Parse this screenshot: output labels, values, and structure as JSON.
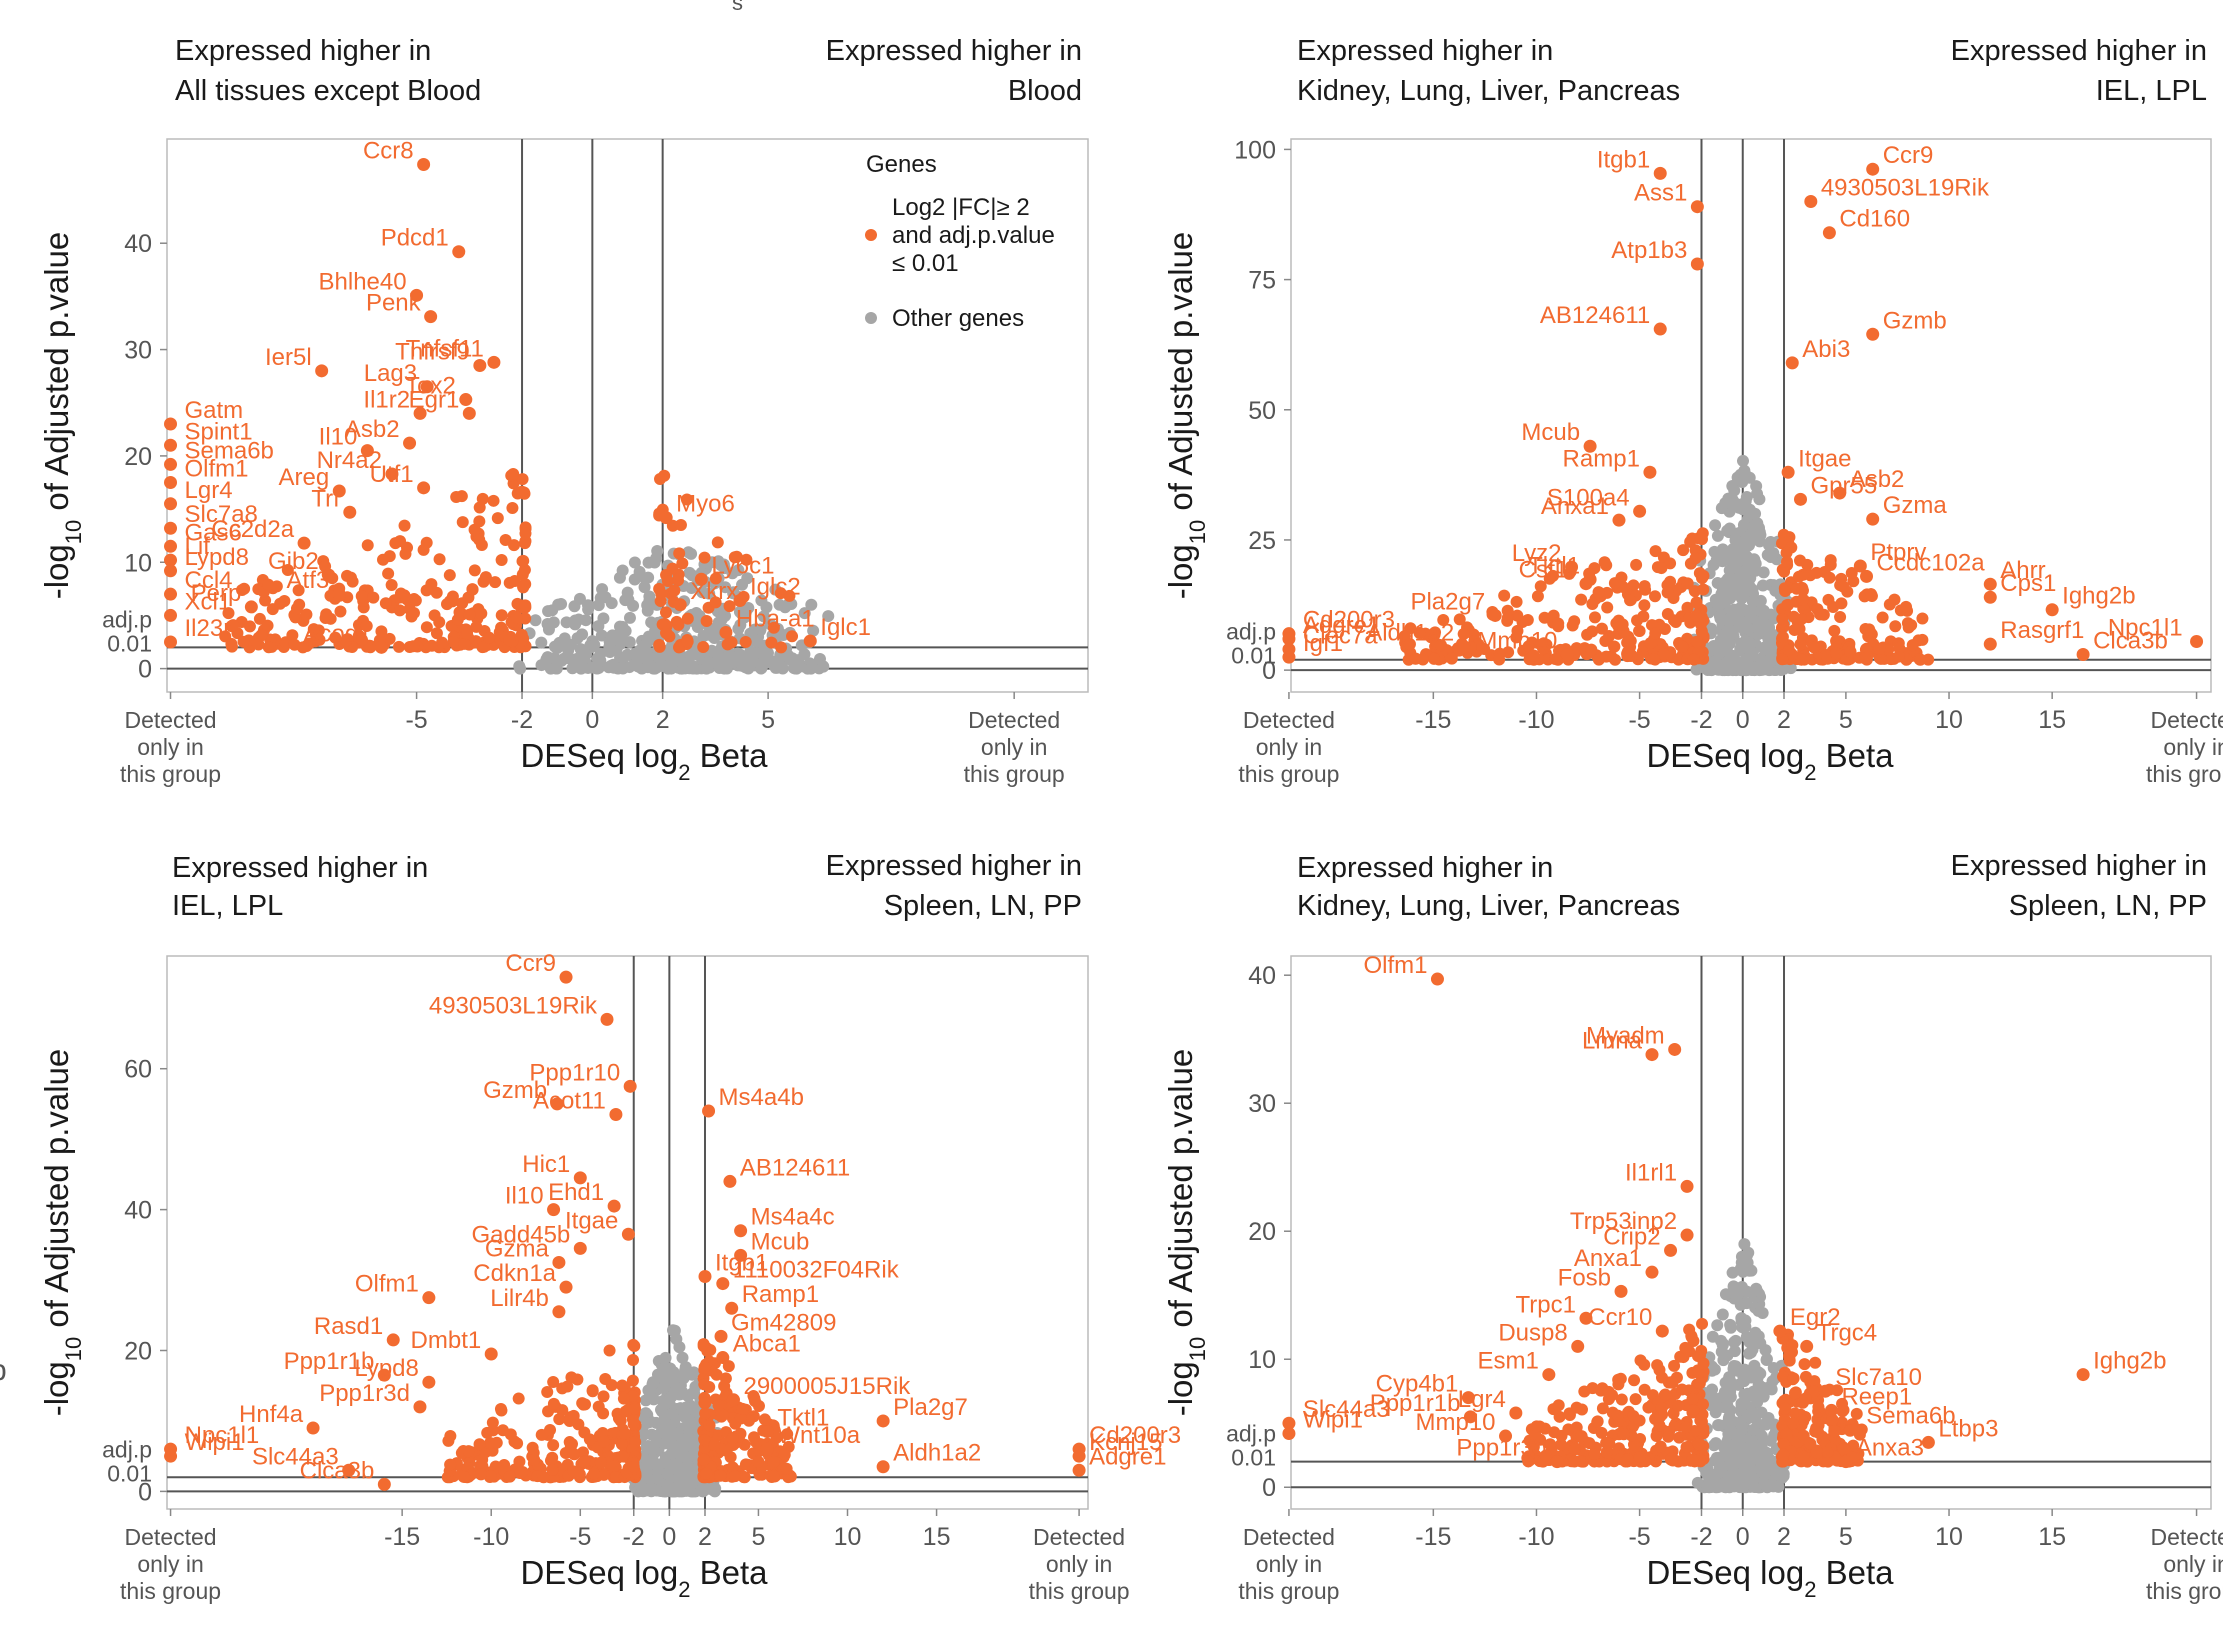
{
  "colors": {
    "highlight": "#f26b30",
    "other": "#a6a6a6",
    "leader": "#f5a27c",
    "frame": "#bbbbbb",
    "line": "#555555"
  },
  "legend": {
    "title": "Genes",
    "sig_label": [
      "Log2 |FC|≥ 2",
      "and adj.p.value",
      "≤ 0.01"
    ],
    "other_label": "Other genes"
  },
  "partial_text": {
    "corner_s": "s",
    "side_p": "p"
  },
  "common": {
    "ylabel_pre": "-log",
    "ylabel_sub": "10",
    "ylabel_post": " of Adjusted p.value",
    "xlabel_pre": "DESeq log",
    "xlabel_sub": "2",
    "xlabel_post": " Beta",
    "detected": [
      "Detected",
      "only in",
      "this group"
    ],
    "adjp": [
      "adj.p",
      "0.01"
    ],
    "zero": "0"
  },
  "chart_data": [
    {
      "type": "scatter",
      "left_header": [
        "Expressed higher in",
        "All tissues except Blood"
      ],
      "right_header": [
        "Expressed higher in",
        "Blood"
      ],
      "xlim": [
        -12.1,
        14.1
      ],
      "ylim": [
        -2.2,
        49.8
      ],
      "xticks": [
        -5,
        -2,
        0,
        2,
        5
      ],
      "xtick_labels": [
        "-5",
        "-2",
        "0",
        "2",
        "5"
      ],
      "yticks": [
        10,
        20,
        30,
        40
      ],
      "ytick_labels": [
        "10",
        "20",
        "30",
        "40"
      ],
      "vlines": [
        -2,
        0,
        2
      ],
      "adj_line": 2,
      "detected_x": [
        -12,
        12
      ],
      "labeled_genes": [
        {
          "gene": "Ccr8",
          "x": -4.8,
          "y": 47.4
        },
        {
          "gene": "Pdcd1",
          "x": -3.8,
          "y": 39.2
        },
        {
          "gene": "Bhlhe40",
          "x": -5.0,
          "y": 35.1
        },
        {
          "gene": "Penk",
          "x": -4.6,
          "y": 33.1
        },
        {
          "gene": "Tnfsf11",
          "x": -2.8,
          "y": 28.8
        },
        {
          "gene": "Tnfrsf9",
          "x": -3.2,
          "y": 28.5
        },
        {
          "gene": "Ier5l",
          "x": -7.7,
          "y": 28.0
        },
        {
          "gene": "Lag3",
          "x": -4.7,
          "y": 26.5
        },
        {
          "gene": "Tox2",
          "x": -3.6,
          "y": 25.3
        },
        {
          "gene": "Egr1",
          "x": -3.5,
          "y": 24.0
        },
        {
          "gene": "Il1r2",
          "x": -4.9,
          "y": 24.0
        },
        {
          "gene": "Asb2",
          "x": -5.2,
          "y": 21.2
        },
        {
          "gene": "Il10",
          "x": -6.4,
          "y": 20.5
        },
        {
          "gene": "Nr4a2",
          "x": -5.7,
          "y": 18.3
        },
        {
          "gene": "Utf1",
          "x": -4.8,
          "y": 17.0
        },
        {
          "gene": "Areg",
          "x": -7.2,
          "y": 16.7
        },
        {
          "gene": "Trf",
          "x": -6.9,
          "y": 14.7
        },
        {
          "gene": "Cc2d2a",
          "x": -8.2,
          "y": 11.8
        },
        {
          "gene": "Gjb2",
          "x": -7.5,
          "y": 8.8
        },
        {
          "gene": "Atf3",
          "x": -7.2,
          "y": 7.0
        },
        {
          "gene": "Perp",
          "x": -9.7,
          "y": 5.8
        },
        {
          "gene": "Acod1",
          "x": -6.0,
          "y": 2.0
        },
        {
          "gene": "Gatm",
          "x": -12,
          "y": 23.0
        },
        {
          "gene": "Spint1",
          "x": -12,
          "y": 21.0
        },
        {
          "gene": "Sema6b",
          "x": -12,
          "y": 19.2
        },
        {
          "gene": "Olfm1",
          "x": -12,
          "y": 17.5
        },
        {
          "gene": "Lgr4",
          "x": -12,
          "y": 15.5
        },
        {
          "gene": "Slc7a8",
          "x": -12,
          "y": 13.2
        },
        {
          "gene": "Gas6",
          "x": -12,
          "y": 11.5
        },
        {
          "gene": "Lif",
          "x": -12,
          "y": 10.2
        },
        {
          "gene": "Lypd8",
          "x": -12,
          "y": 9.2
        },
        {
          "gene": "Ccl4",
          "x": -12,
          "y": 7.0
        },
        {
          "gene": "Xcl1",
          "x": -12,
          "y": 5.0
        },
        {
          "gene": "Il23r",
          "x": -12,
          "y": 2.5
        },
        {
          "gene": "Myo6",
          "x": 2.1,
          "y": 14.2
        },
        {
          "gene": "Ly6c1",
          "x": 3.1,
          "y": 8.4
        },
        {
          "gene": "Iglc2",
          "x": 4.2,
          "y": 6.4
        },
        {
          "gene": "Xkrx",
          "x": 2.5,
          "y": 6.0
        },
        {
          "gene": "Hba-a1",
          "x": 3.8,
          "y": 3.4
        },
        {
          "gene": "Iglc1",
          "x": 6.2,
          "y": 2.6
        }
      ],
      "sig_bulk": [
        -10.5,
        -1.9,
        0,
        19
      ],
      "gray_bulk": [
        -2.2,
        7.0,
        0,
        12
      ]
    },
    {
      "type": "scatter",
      "left_header": [
        "Expressed higher in",
        "Kidney, Lung, Liver, Pancreas"
      ],
      "right_header": [
        "Expressed higher in",
        "IEL, LPL"
      ],
      "xlim": [
        -21.9,
        22.7
      ],
      "ylim": [
        -4.2,
        102
      ],
      "xticks": [
        -15,
        -10,
        -5,
        -2,
        0,
        2,
        5,
        10,
        15
      ],
      "xtick_labels": [
        "-15",
        "-10",
        "-5",
        "-2",
        "0",
        "2",
        "5",
        "10",
        "15"
      ],
      "yticks": [
        25,
        50,
        75,
        100
      ],
      "ytick_labels": [
        "25",
        "50",
        "75",
        "100"
      ],
      "vlines": [
        -2,
        0,
        2
      ],
      "adj_line": 2,
      "detected_x": [
        -22,
        22
      ],
      "labeled_genes": [
        {
          "gene": "Itgb1",
          "x": -4.0,
          "y": 95.4
        },
        {
          "gene": "Ccr9",
          "x": 6.3,
          "y": 96.2
        },
        {
          "gene": "Ass1",
          "x": -2.2,
          "y": 89.0
        },
        {
          "gene": "4930503L19Rik",
          "x": 3.3,
          "y": 90.0
        },
        {
          "gene": "Cd160",
          "x": 4.2,
          "y": 84.0
        },
        {
          "gene": "Atp1b3",
          "x": -2.2,
          "y": 78.0
        },
        {
          "gene": "Gzmb",
          "x": 6.3,
          "y": 64.5
        },
        {
          "gene": "AB124611",
          "x": -4.0,
          "y": 65.5
        },
        {
          "gene": "Abi3",
          "x": 2.4,
          "y": 59.0
        },
        {
          "gene": "Itgae",
          "x": 2.2,
          "y": 38.0
        },
        {
          "gene": "Mcub",
          "x": -7.4,
          "y": 43.0
        },
        {
          "gene": "Ramp1",
          "x": -4.5,
          "y": 38.0
        },
        {
          "gene": "Gpr55",
          "x": 2.8,
          "y": 32.8
        },
        {
          "gene": "Asb2",
          "x": 4.7,
          "y": 34.0
        },
        {
          "gene": "S100a4",
          "x": -5.0,
          "y": 30.5
        },
        {
          "gene": "Gzma",
          "x": 6.3,
          "y": 29.0
        },
        {
          "gene": "Anxa1",
          "x": -6.0,
          "y": 28.8
        },
        {
          "gene": "Lyz2",
          "x": -8.3,
          "y": 19.8
        },
        {
          "gene": "Tktl1",
          "x": -7.4,
          "y": 17.4
        },
        {
          "gene": "Ptprv",
          "x": 5.7,
          "y": 20.0
        },
        {
          "gene": "Ccdc102a",
          "x": 6.0,
          "y": 18.0
        },
        {
          "gene": "Csf1r",
          "x": -7.6,
          "y": 16.6
        },
        {
          "gene": "Ahrr",
          "x": 12.0,
          "y": 16.5
        },
        {
          "gene": "Cps1",
          "x": 12.0,
          "y": 14.0
        },
        {
          "gene": "Ighg2b",
          "x": 15.0,
          "y": 11.6
        },
        {
          "gene": "Pla2g7",
          "x": -12.0,
          "y": 10.5
        },
        {
          "gene": "Npc1l1",
          "x": 22,
          "y": 5.5
        },
        {
          "gene": "Aldh1a2",
          "x": -13.5,
          "y": 4.5
        },
        {
          "gene": "Mmp10",
          "x": -8.5,
          "y": 3.0
        },
        {
          "gene": "Rasgrf1",
          "x": 12.0,
          "y": 5.0
        },
        {
          "gene": "Clca3b",
          "x": 16.5,
          "y": 3.0
        },
        {
          "gene": "Cd200r3",
          "x": -22,
          "y": 7.0
        },
        {
          "gene": "Adgre1",
          "x": -22,
          "y": 6.0
        },
        {
          "gene": "Clec7a",
          "x": -22,
          "y": 4.0
        },
        {
          "gene": "Igf1",
          "x": -22,
          "y": 2.5
        }
      ],
      "sig_bulk": [
        -16.5,
        -1.9,
        0,
        27
      ],
      "gray_bulk": [
        -2.5,
        2.5,
        0,
        42
      ]
    },
    {
      "type": "scatter",
      "left_header": [
        "Expressed higher in",
        "IEL, LPL"
      ],
      "right_header": [
        "Expressed higher in",
        "Spleen, LN, PP"
      ],
      "xlim": [
        -28.2,
        23.5
      ],
      "ylim": [
        -2.5,
        76
      ],
      "xticks": [
        -15,
        -10,
        -5,
        -2,
        0,
        2,
        5,
        10,
        15
      ],
      "xtick_labels": [
        "-15",
        "-10",
        "-5",
        "-2",
        "0",
        "2",
        "5",
        "10",
        "15"
      ],
      "yticks": [
        20,
        40,
        60
      ],
      "ytick_labels": [
        "20",
        "40",
        "60"
      ],
      "vlines": [
        -2,
        0,
        2
      ],
      "adj_line": 2,
      "detected_x": [
        -28,
        23
      ],
      "labeled_genes": [
        {
          "gene": "Ccr9",
          "x": -5.8,
          "y": 73.0
        },
        {
          "gene": "4930503L19Rik",
          "x": -3.5,
          "y": 67.0
        },
        {
          "gene": "Ppp1r10",
          "x": -2.2,
          "y": 57.5
        },
        {
          "gene": "Gzmb",
          "x": -6.3,
          "y": 55.0
        },
        {
          "gene": "Acot11",
          "x": -3.0,
          "y": 53.5
        },
        {
          "gene": "Ms4a4b",
          "x": 2.2,
          "y": 54.0
        },
        {
          "gene": "AB124611",
          "x": 3.4,
          "y": 44.0
        },
        {
          "gene": "Hic1",
          "x": -5.0,
          "y": 44.5
        },
        {
          "gene": "Il10",
          "x": -6.5,
          "y": 40.0
        },
        {
          "gene": "Ehd1",
          "x": -3.1,
          "y": 40.5
        },
        {
          "gene": "Ms4a4c",
          "x": 4.0,
          "y": 37.0
        },
        {
          "gene": "Itgae",
          "x": -2.3,
          "y": 36.5
        },
        {
          "gene": "Gadd45b",
          "x": -5.0,
          "y": 34.5
        },
        {
          "gene": "Mcub",
          "x": 4.0,
          "y": 33.5
        },
        {
          "gene": "Gzma",
          "x": -6.2,
          "y": 32.5
        },
        {
          "gene": "Itgb1",
          "x": 2.0,
          "y": 30.5
        },
        {
          "gene": "1110032F04Rik",
          "x": 3.0,
          "y": 29.5
        },
        {
          "gene": "Cdkn1a",
          "x": -5.8,
          "y": 29.0
        },
        {
          "gene": "Olfm1",
          "x": -13.5,
          "y": 27.5
        },
        {
          "gene": "Ramp1",
          "x": 3.5,
          "y": 26.0
        },
        {
          "gene": "Lilr4b",
          "x": -6.2,
          "y": 25.5
        },
        {
          "gene": "Rasd1",
          "x": -15.5,
          "y": 21.5
        },
        {
          "gene": "Gm42809",
          "x": 2.9,
          "y": 22.0
        },
        {
          "gene": "Dmbt1",
          "x": -10.0,
          "y": 19.5
        },
        {
          "gene": "Abca1",
          "x": 3.0,
          "y": 19.0
        },
        {
          "gene": "Ppp1r1b",
          "x": -16.0,
          "y": 16.5
        },
        {
          "gene": "Lypd8",
          "x": -13.5,
          "y": 15.5
        },
        {
          "gene": "Ppp1r3d",
          "x": -14.0,
          "y": 12.0
        },
        {
          "gene": "2900005J15Rik",
          "x": 3.6,
          "y": 13.0
        },
        {
          "gene": "Pla2g7",
          "x": 12.0,
          "y": 10.0
        },
        {
          "gene": "Tktl1",
          "x": 5.5,
          "y": 8.5
        },
        {
          "gene": "Hnf4a",
          "x": -20.0,
          "y": 9.0
        },
        {
          "gene": "Wnt10a",
          "x": 5.5,
          "y": 6.0
        },
        {
          "gene": "Aldh1a2",
          "x": 12.0,
          "y": 3.5
        },
        {
          "gene": "Slc44a3",
          "x": -18.0,
          "y": 3.0
        },
        {
          "gene": "Clca3b",
          "x": -16.0,
          "y": 1.0
        },
        {
          "gene": "Npc1l1",
          "x": -28,
          "y": 6.0
        },
        {
          "gene": "Wipi1",
          "x": -28,
          "y": 5.0
        },
        {
          "gene": "Cd200r3",
          "x": 23,
          "y": 6.0
        },
        {
          "gene": "Kcnj15",
          "x": 23,
          "y": 5.0
        },
        {
          "gene": "Adgre1",
          "x": 23,
          "y": 3.0
        }
      ],
      "sig_bulk": [
        -12.5,
        -1.9,
        0,
        22
      ],
      "gray_bulk": [
        -2.2,
        3.0,
        0,
        24
      ]
    },
    {
      "type": "scatter",
      "left_header": [
        "Expressed higher in",
        "Kidney, Lung, Liver, Pancreas"
      ],
      "right_header": [
        "Expressed higher in",
        "Spleen, LN, PP"
      ],
      "xlim": [
        -21.9,
        22.7
      ],
      "ylim": [
        -1.7,
        41.5
      ],
      "xticks": [
        -15,
        -10,
        -5,
        -2,
        0,
        2,
        5,
        10,
        15
      ],
      "xtick_labels": [
        "-15",
        "-10",
        "-5",
        "-2",
        "0",
        "2",
        "5",
        "10",
        "15"
      ],
      "yticks": [
        10,
        20,
        30,
        40
      ],
      "ytick_labels": [
        "10",
        "20",
        "30",
        "40"
      ],
      "vlines": [
        -2,
        0,
        2
      ],
      "adj_line": 2,
      "detected_x": [
        -22,
        22
      ],
      "labeled_genes": [
        {
          "gene": "Olfm1",
          "x": -14.8,
          "y": 39.7
        },
        {
          "gene": "Myadm",
          "x": -3.3,
          "y": 34.2
        },
        {
          "gene": "Lmna",
          "x": -4.4,
          "y": 33.8
        },
        {
          "gene": "Il1rl1",
          "x": -2.7,
          "y": 23.5
        },
        {
          "gene": "Trp53inp2",
          "x": -2.7,
          "y": 19.7
        },
        {
          "gene": "Crip2",
          "x": -3.5,
          "y": 18.5
        },
        {
          "gene": "Anxa1",
          "x": -4.4,
          "y": 16.8
        },
        {
          "gene": "Fosb",
          "x": -5.9,
          "y": 15.3
        },
        {
          "gene": "Egr2",
          "x": 1.8,
          "y": 12.2
        },
        {
          "gene": "Trpc1",
          "x": -7.6,
          "y": 13.2
        },
        {
          "gene": "Ccr10",
          "x": -3.9,
          "y": 12.2
        },
        {
          "gene": "Trgc4",
          "x": 3.1,
          "y": 11.0
        },
        {
          "gene": "Dusp8",
          "x": -8.0,
          "y": 11.0
        },
        {
          "gene": "Ighg2b",
          "x": 16.5,
          "y": 8.8
        },
        {
          "gene": "Esm1",
          "x": -9.4,
          "y": 8.8
        },
        {
          "gene": "Slc7a10",
          "x": 4.0,
          "y": 7.5
        },
        {
          "gene": "Cyp4b1",
          "x": -13.3,
          "y": 7.0
        },
        {
          "gene": "Reep1",
          "x": 4.3,
          "y": 6.0
        },
        {
          "gene": "Ppp1r1b",
          "x": -13.2,
          "y": 5.5
        },
        {
          "gene": "Lgr4",
          "x": -11.0,
          "y": 5.8
        },
        {
          "gene": "Sema6b",
          "x": 5.5,
          "y": 4.5
        },
        {
          "gene": "Mmp10",
          "x": -11.5,
          "y": 4.0
        },
        {
          "gene": "Ltbp3",
          "x": 9.0,
          "y": 3.5
        },
        {
          "gene": "Ppp1r3d",
          "x": -9.0,
          "y": 2.0
        },
        {
          "gene": "Anxa3",
          "x": 5.0,
          "y": 2.0
        },
        {
          "gene": "Slc44a3",
          "x": -22,
          "y": 5.0
        },
        {
          "gene": "Wipi1",
          "x": -22,
          "y": 4.2
        }
      ],
      "sig_bulk": [
        -10.5,
        -1.9,
        0,
        13
      ],
      "gray_bulk": [
        -2.2,
        2.2,
        0,
        20
      ]
    }
  ]
}
